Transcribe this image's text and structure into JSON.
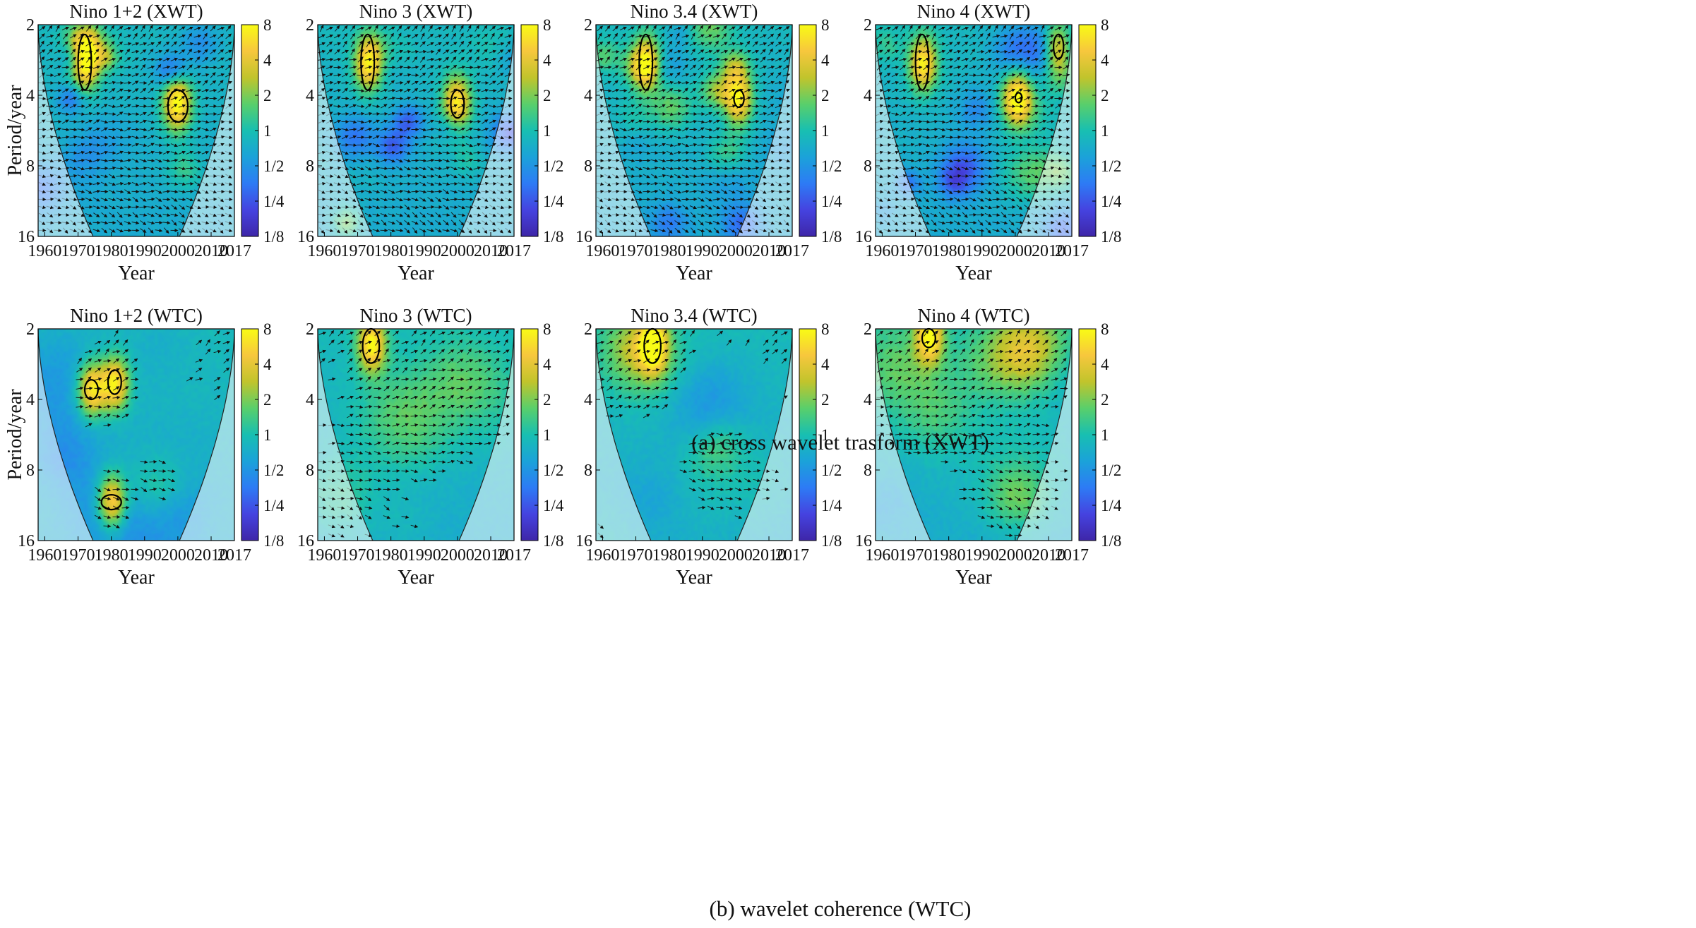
{
  "figure": {
    "captions": [
      "(a) cross wavelet trasform (XWT)",
      "(b) wavelet coherence (WTC)"
    ]
  },
  "colors": {
    "colormap": [
      "#3e26a8",
      "#4543e0",
      "#2d7bf5",
      "#1ba2d9",
      "#18bfb1",
      "#59cf6b",
      "#c1c42c",
      "#f7c73d",
      "#f9fb15"
    ],
    "contour": "#000000",
    "arrow": "#111111"
  },
  "chart_data": [
    {
      "type": "heatmap",
      "kind": "xwt",
      "title": "Nino 1+2 (XWT)",
      "xlabel": "Year",
      "ylabel": "Period/year",
      "xticks": [
        1960,
        1970,
        1980,
        1990,
        2000,
        2010,
        2017
      ],
      "xlim": [
        1958,
        2017
      ],
      "yticks": [
        "2",
        "4",
        "8",
        "16"
      ],
      "ylim": [
        2,
        16
      ],
      "colorbar": [
        "8",
        "4",
        "2",
        "1",
        "1/2",
        "1/4",
        "1/8"
      ],
      "colorbar_range": [
        0.125,
        8
      ],
      "significant_regions": [
        {
          "year": 1972,
          "period": 2.9,
          "year_width": 4,
          "period_span": [
            2.2,
            3.8
          ]
        },
        {
          "year": 2000,
          "period": 4.4,
          "year_width": 6,
          "period_span": [
            3.8,
            5.2
          ]
        }
      ]
    },
    {
      "type": "heatmap",
      "kind": "xwt",
      "title": "Nino 3 (XWT)",
      "xlabel": "Year",
      "ylabel": "Period/year",
      "xticks": [
        1960,
        1970,
        1980,
        1990,
        2000,
        2010,
        2017
      ],
      "xlim": [
        1958,
        2017
      ],
      "yticks": [
        "2",
        "4",
        "8",
        "16"
      ],
      "ylim": [
        2,
        16
      ],
      "colorbar": [
        "8",
        "4",
        "2",
        "1",
        "1/2",
        "1/4",
        "1/8"
      ],
      "colorbar_range": [
        0.125,
        8
      ],
      "significant_regions": [
        {
          "year": 1973,
          "period": 2.9,
          "year_width": 4,
          "period_span": [
            2.2,
            3.8
          ]
        },
        {
          "year": 2000,
          "period": 4.3,
          "year_width": 4,
          "period_span": [
            3.8,
            5.0
          ]
        }
      ]
    },
    {
      "type": "heatmap",
      "kind": "xwt",
      "title": "Nino 3.4 (XWT)",
      "xlabel": "Year",
      "ylabel": "Period/year",
      "xticks": [
        1960,
        1970,
        1980,
        1990,
        2000,
        2010,
        2017
      ],
      "xlim": [
        1958,
        2017
      ],
      "yticks": [
        "2",
        "4",
        "8",
        "16"
      ],
      "ylim": [
        2,
        16
      ],
      "colorbar": [
        "8",
        "4",
        "2",
        "1",
        "1/2",
        "1/4",
        "1/8"
      ],
      "colorbar_range": [
        0.125,
        8
      ],
      "significant_regions": [
        {
          "year": 1973,
          "period": 2.9,
          "year_width": 4,
          "period_span": [
            2.2,
            3.8
          ]
        },
        {
          "year": 2001,
          "period": 4.1,
          "year_width": 3,
          "period_span": [
            3.8,
            4.5
          ]
        }
      ]
    },
    {
      "type": "heatmap",
      "kind": "xwt",
      "title": "Nino 4 (XWT)",
      "xlabel": "Year",
      "ylabel": "Period/year",
      "xticks": [
        1960,
        1970,
        1980,
        1990,
        2000,
        2010,
        2017
      ],
      "xlim": [
        1958,
        2017
      ],
      "yticks": [
        "2",
        "4",
        "8",
        "16"
      ],
      "ylim": [
        2,
        16
      ],
      "colorbar": [
        "8",
        "4",
        "2",
        "1",
        "1/2",
        "1/4",
        "1/8"
      ],
      "colorbar_range": [
        0.125,
        8
      ],
      "significant_regions": [
        {
          "year": 1972,
          "period": 2.9,
          "year_width": 4,
          "period_span": [
            2.2,
            3.8
          ]
        },
        {
          "year": 2001,
          "period": 4.1,
          "year_width": 2,
          "period_span": [
            3.9,
            4.3
          ]
        },
        {
          "year": 2013,
          "period": 2.5,
          "year_width": 3,
          "period_span": [
            2.2,
            2.8
          ]
        }
      ]
    },
    {
      "type": "heatmap",
      "kind": "wtc",
      "title": "Nino 1+2 (WTC)",
      "xlabel": "Year",
      "ylabel": "Period/year",
      "xticks": [
        1960,
        1970,
        1980,
        1990,
        2000,
        2010,
        2017
      ],
      "xlim": [
        1958,
        2017
      ],
      "yticks": [
        "2",
        "4",
        "8",
        "16"
      ],
      "ylim": [
        2,
        16
      ],
      "colorbar": [
        "8",
        "4",
        "2",
        "1",
        "1/2",
        "1/4",
        "1/8"
      ],
      "colorbar_range": [
        0.125,
        8
      ],
      "significant_regions": [
        {
          "year": 1974,
          "period": 3.6,
          "year_width": 4,
          "period_span": [
            3.3,
            4.0
          ]
        },
        {
          "year": 1981,
          "period": 3.4,
          "year_width": 4,
          "period_span": [
            3.0,
            3.8
          ]
        },
        {
          "year": 1980,
          "period": 11.0,
          "year_width": 6,
          "period_span": [
            10.2,
            11.8
          ]
        }
      ]
    },
    {
      "type": "heatmap",
      "kind": "wtc",
      "title": "Nino 3 (WTC)",
      "xlabel": "Year",
      "ylabel": "Period/year",
      "xticks": [
        1960,
        1970,
        1980,
        1990,
        2000,
        2010,
        2017
      ],
      "xlim": [
        1958,
        2017
      ],
      "yticks": [
        "2",
        "4",
        "8",
        "16"
      ],
      "ylim": [
        2,
        16
      ],
      "colorbar": [
        "8",
        "4",
        "2",
        "1",
        "1/2",
        "1/4",
        "1/8"
      ],
      "colorbar_range": [
        0.125,
        8
      ],
      "significant_regions": [
        {
          "year": 1974,
          "period": 2.3,
          "year_width": 5,
          "period_span": [
            2.0,
            2.8
          ]
        }
      ]
    },
    {
      "type": "heatmap",
      "kind": "wtc",
      "title": "Nino 3.4 (WTC)",
      "xlabel": "Year",
      "ylabel": "Period/year",
      "xticks": [
        1960,
        1970,
        1980,
        1990,
        2000,
        2010,
        2017
      ],
      "xlim": [
        1958,
        2017
      ],
      "yticks": [
        "2",
        "4",
        "8",
        "16"
      ],
      "ylim": [
        2,
        16
      ],
      "colorbar": [
        "8",
        "4",
        "2",
        "1",
        "1/2",
        "1/4",
        "1/8"
      ],
      "colorbar_range": [
        0.125,
        8
      ],
      "significant_regions": [
        {
          "year": 1975,
          "period": 2.3,
          "year_width": 5,
          "period_span": [
            2.0,
            2.8
          ]
        }
      ]
    },
    {
      "type": "heatmap",
      "kind": "wtc",
      "title": "Nino 4 (WTC)",
      "xlabel": "Year",
      "ylabel": "Period/year",
      "xticks": [
        1960,
        1970,
        1980,
        1990,
        2000,
        2010,
        2017
      ],
      "xlim": [
        1958,
        2017
      ],
      "yticks": [
        "2",
        "4",
        "8",
        "16"
      ],
      "ylim": [
        2,
        16
      ],
      "colorbar": [
        "8",
        "4",
        "2",
        "1",
        "1/2",
        "1/4",
        "1/8"
      ],
      "colorbar_range": [
        0.125,
        8
      ],
      "significant_regions": [
        {
          "year": 1974,
          "period": 2.1,
          "year_width": 4,
          "period_span": [
            2.0,
            2.4
          ]
        }
      ]
    }
  ]
}
